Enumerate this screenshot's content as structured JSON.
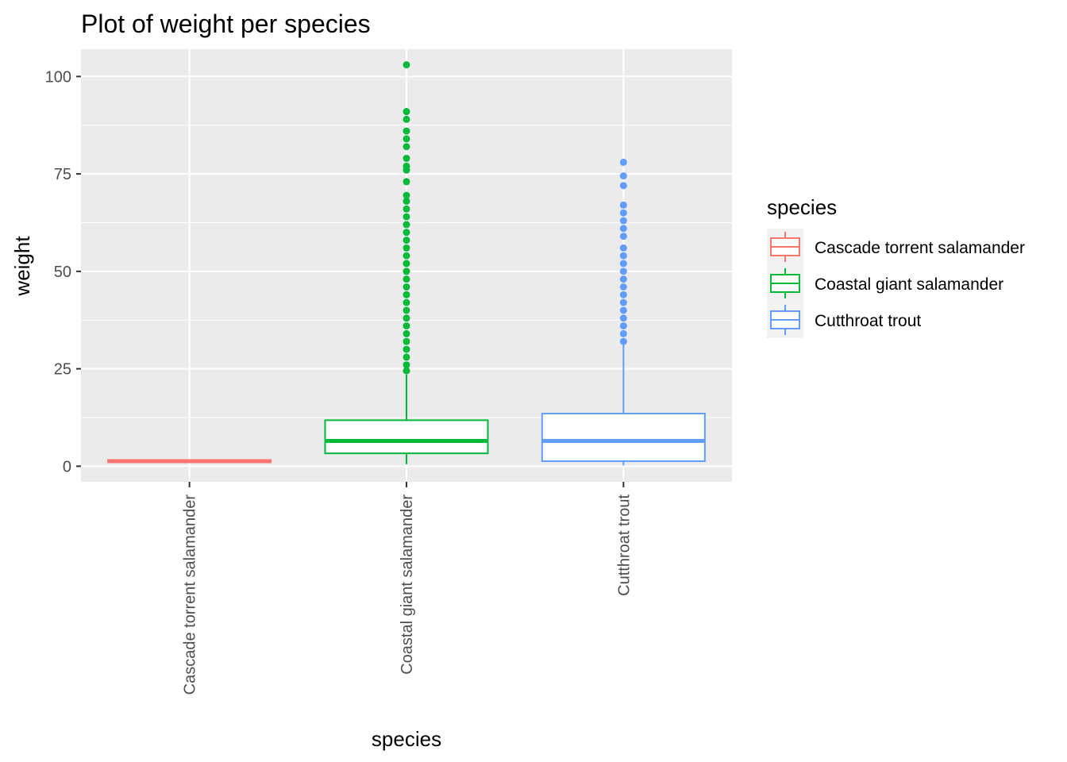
{
  "chart_data": {
    "type": "boxplot",
    "title": "Plot of weight per species",
    "xlabel": "species",
    "ylabel": "weight",
    "ylim": [
      -4,
      107
    ],
    "yticks": [
      0,
      25,
      50,
      75,
      100
    ],
    "grid": true,
    "legend": {
      "title": "species",
      "position": "right"
    },
    "categories": [
      "Cascade torrent salamander",
      "Coastal giant salamander",
      "Cutthroat trout"
    ],
    "series": [
      {
        "name": "Cascade torrent salamander",
        "color": "#F8766D",
        "min": 1.0,
        "q1": 1.0,
        "median": 1.3,
        "q3": 1.6,
        "max": 1.6,
        "outliers": []
      },
      {
        "name": "Coastal giant salamander",
        "color": "#00BA38",
        "min": 0.5,
        "q1": 3.3,
        "median": 6.5,
        "q3": 11.8,
        "max": 23.5,
        "outliers": [
          103,
          91,
          89,
          86,
          84,
          82,
          79,
          77,
          76,
          73,
          69.5,
          68,
          66,
          64,
          62,
          60,
          58,
          56,
          54,
          52,
          50,
          48,
          46,
          44,
          42,
          40,
          38,
          36,
          34,
          32,
          30,
          28,
          26,
          24.5
        ]
      },
      {
        "name": "Cutthroat trout",
        "color": "#619CFF",
        "min": 0.2,
        "q1": 1.3,
        "median": 6.5,
        "q3": 13.5,
        "max": 31.5,
        "outliers": [
          78,
          74.5,
          72,
          67,
          65,
          63,
          61,
          59,
          56,
          54,
          52,
          50,
          48,
          46,
          44,
          42,
          40,
          38,
          36,
          34,
          32
        ]
      }
    ]
  }
}
